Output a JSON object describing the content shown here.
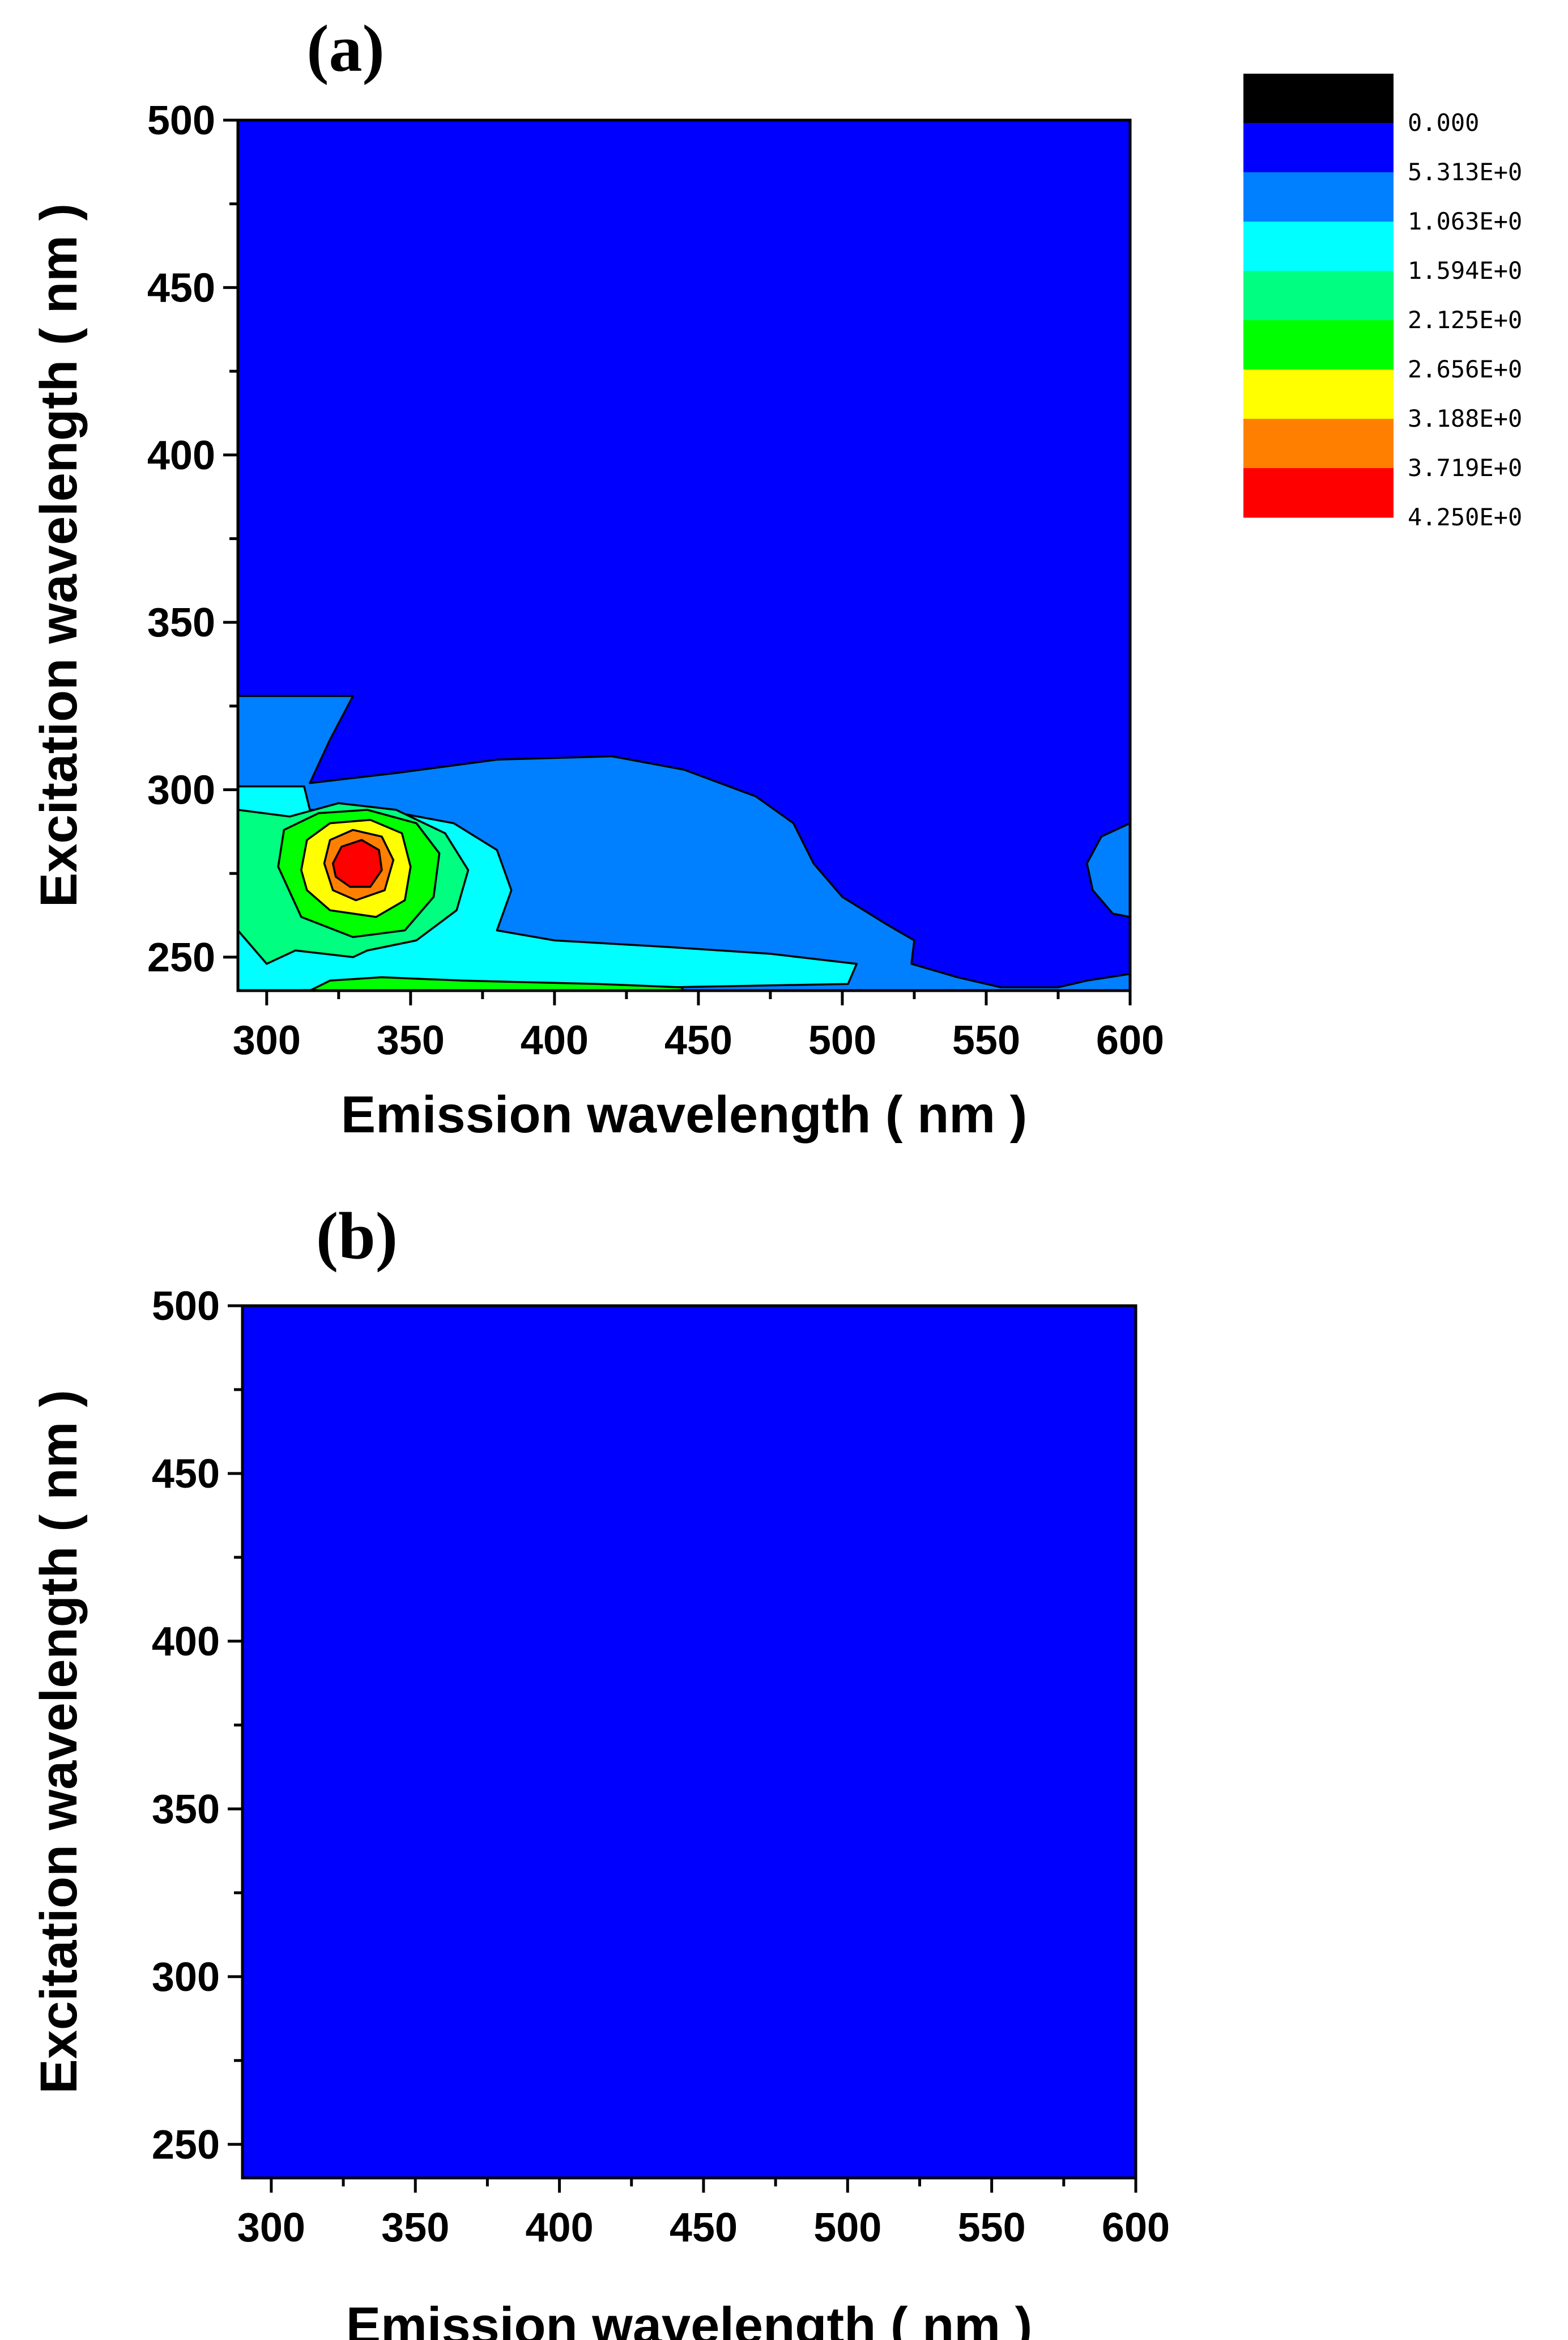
{
  "chart_data": [
    {
      "type": "heatmap",
      "subtype": "contour",
      "panel_label": "(a)",
      "xlabel": "Emission wavelength ( nm )",
      "ylabel": "Excitation wavelength ( nm )",
      "xlim": [
        290,
        600
      ],
      "ylim": [
        240,
        500
      ],
      "xticks": [
        300,
        350,
        400,
        450,
        500,
        550,
        600
      ],
      "yticks": [
        250,
        300,
        350,
        400,
        450,
        500
      ],
      "background_level": 1,
      "peak": {
        "emission_nm": 330,
        "excitation_nm": 277,
        "level": 8
      },
      "contours": [
        {
          "level": 2,
          "points": [
            [
              290,
              328
            ],
            [
              330,
              328
            ],
            [
              322,
              315
            ],
            [
              315,
              302
            ],
            [
              345,
              305
            ],
            [
              380,
              309
            ],
            [
              420,
              310
            ],
            [
              445,
              306
            ],
            [
              470,
              298
            ],
            [
              483,
              290
            ],
            [
              490,
              278
            ],
            [
              500,
              268
            ],
            [
              515,
              260
            ],
            [
              525,
              255
            ],
            [
              524,
              248
            ],
            [
              540,
              244
            ],
            [
              555,
              241
            ],
            [
              575,
              241
            ],
            [
              585,
              243
            ],
            [
              600,
              245
            ],
            [
              600,
              240
            ],
            [
              290,
              240
            ]
          ]
        },
        {
          "level": 2,
          "points": [
            [
              600,
              290
            ],
            [
              590,
              286
            ],
            [
              585,
              278
            ],
            [
              587,
              270
            ],
            [
              594,
              263
            ],
            [
              600,
              262
            ]
          ]
        },
        {
          "level": 3,
          "points": [
            [
              290,
              301
            ],
            [
              313,
              301
            ],
            [
              315,
              294
            ],
            [
              340,
              294
            ],
            [
              365,
              290
            ],
            [
              380,
              282
            ],
            [
              385,
              270
            ],
            [
              380,
              258
            ],
            [
              400,
              255
            ],
            [
              440,
              253
            ],
            [
              475,
              251
            ],
            [
              505,
              248
            ],
            [
              502,
              242
            ],
            [
              440,
              241
            ],
            [
              290,
              240
            ]
          ]
        },
        {
          "level": 4,
          "points": [
            [
              290,
              258
            ],
            [
              290,
              294
            ],
            [
              308,
              292
            ],
            [
              325,
              296
            ],
            [
              345,
              294
            ],
            [
              362,
              287
            ],
            [
              370,
              276
            ],
            [
              366,
              264
            ],
            [
              352,
              255
            ],
            [
              335,
              252
            ],
            [
              330,
              250
            ],
            [
              310,
              252
            ],
            [
              300,
              248
            ]
          ]
        },
        {
          "level": 5,
          "points": [
            [
              304,
              277
            ],
            [
              306,
              288
            ],
            [
              318,
              293
            ],
            [
              335,
              294
            ],
            [
              352,
              290
            ],
            [
              360,
              281
            ],
            [
              358,
              268
            ],
            [
              348,
              258
            ],
            [
              330,
              256
            ],
            [
              312,
              262
            ]
          ]
        },
        {
          "level": 5,
          "points": [
            [
              315,
              240
            ],
            [
              322,
              243
            ],
            [
              340,
              244
            ],
            [
              368,
              243
            ],
            [
              415,
              242
            ],
            [
              444,
              241
            ],
            [
              445,
              240
            ]
          ]
        },
        {
          "level": 6,
          "points": [
            [
              312,
              276
            ],
            [
              314,
              285
            ],
            [
              322,
              290
            ],
            [
              336,
              291
            ],
            [
              347,
              287
            ],
            [
              350,
              277
            ],
            [
              348,
              267
            ],
            [
              338,
              262
            ],
            [
              322,
              264
            ],
            [
              314,
              270
            ]
          ]
        },
        {
          "level": 7,
          "points": [
            [
              320,
              278
            ],
            [
              322,
              285
            ],
            [
              330,
              288
            ],
            [
              340,
              286
            ],
            [
              344,
              279
            ],
            [
              341,
              270
            ],
            [
              331,
              267
            ],
            [
              323,
              270
            ]
          ]
        },
        {
          "level": 8,
          "points": [
            [
              323,
              278
            ],
            [
              326,
              283
            ],
            [
              333,
              285
            ],
            [
              339,
              282
            ],
            [
              340,
              276
            ],
            [
              336,
              271
            ],
            [
              329,
              271
            ],
            [
              324,
              274
            ]
          ]
        }
      ]
    },
    {
      "type": "heatmap",
      "subtype": "contour",
      "panel_label": "(b)",
      "xlabel": "Emission wavelength ( nm )",
      "ylabel": "Excitation wavelength ( nm )",
      "xlim": [
        290,
        600
      ],
      "ylim": [
        240,
        500
      ],
      "xticks": [
        300,
        350,
        400,
        450,
        500,
        550,
        600
      ],
      "yticks": [
        250,
        300,
        350,
        400,
        450,
        500
      ],
      "background_level": 1,
      "contours": []
    }
  ],
  "legend": {
    "levels": [
      {
        "color": "#000000"
      },
      {
        "color": "#0000FF"
      },
      {
        "color": "#0080FF"
      },
      {
        "color": "#00FFFF"
      },
      {
        "color": "#00FF80"
      },
      {
        "color": "#00FF00"
      },
      {
        "color": "#FFFF00"
      },
      {
        "color": "#FF8000"
      },
      {
        "color": "#FF0000"
      }
    ],
    "labels": [
      "0.000",
      "5.313E+0",
      "1.063E+0",
      "1.594E+0",
      "2.125E+0",
      "2.656E+0",
      "3.188E+0",
      "3.719E+0",
      "4.250E+0"
    ]
  }
}
